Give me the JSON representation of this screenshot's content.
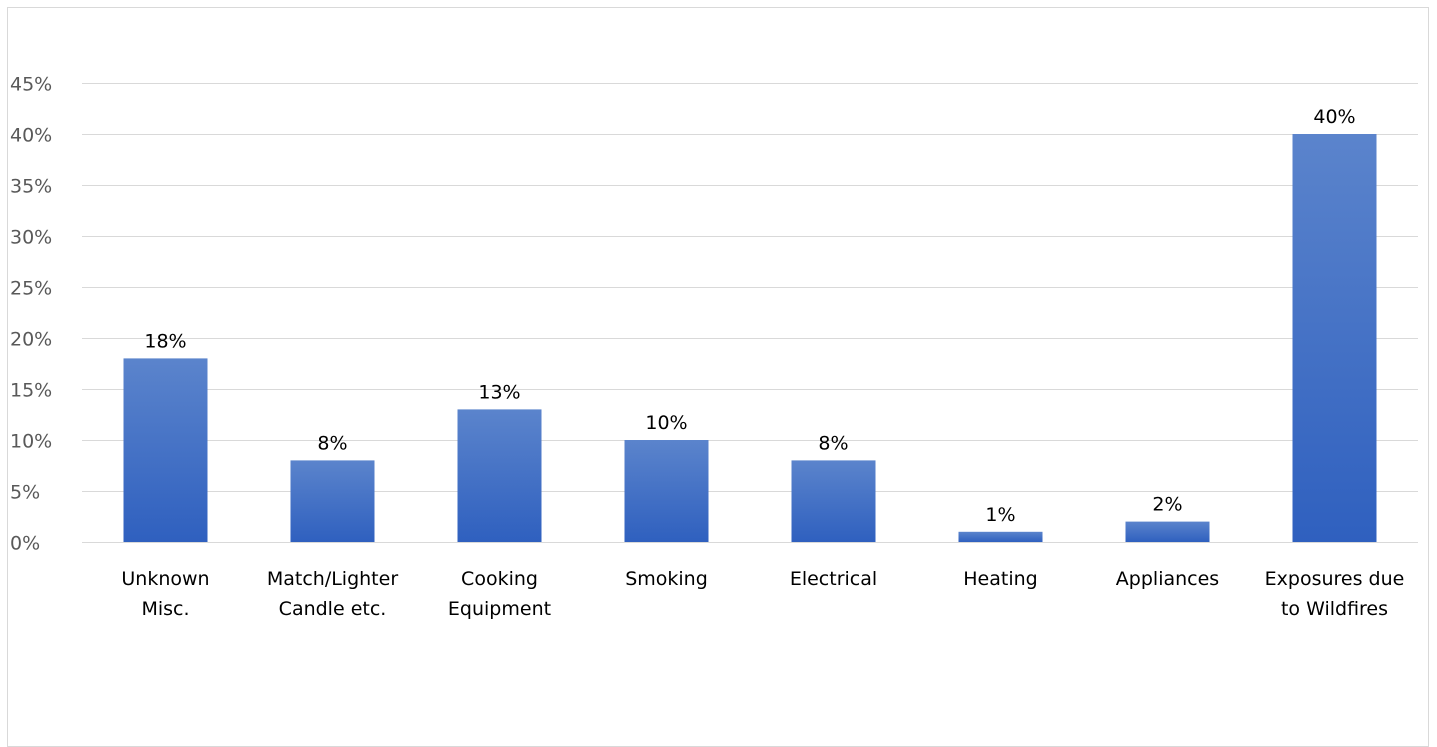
{
  "chart_data": {
    "type": "bar",
    "categories": [
      [
        "Unknown",
        "Misc."
      ],
      [
        "Match/Lighter",
        "Candle etc."
      ],
      [
        "Cooking",
        "Equipment"
      ],
      [
        "Smoking"
      ],
      [
        "Electrical"
      ],
      [
        "Heating"
      ],
      [
        "Appliances"
      ],
      [
        "Exposures due",
        "to Wildfires"
      ]
    ],
    "values": [
      18,
      8,
      13,
      10,
      8,
      1,
      2,
      40
    ],
    "data_labels": [
      "18%",
      "8%",
      "13%",
      "10%",
      "8%",
      "1%",
      "2%",
      "40%"
    ],
    "y_ticks": [
      0,
      5,
      10,
      15,
      20,
      25,
      30,
      35,
      40,
      45
    ],
    "y_tick_labels": [
      "0%",
      "5%",
      "10%",
      "15%",
      "20%",
      "25%",
      "30%",
      "35%",
      "40%",
      "45%"
    ],
    "ylim": [
      0,
      45
    ],
    "grid": true,
    "legend": "none",
    "colors": {
      "bar_top": "#5b84cc",
      "bar_bottom": "#2f60bf",
      "grid": "#d9d9d9",
      "tick_text": "#595959",
      "label_text": "#000000"
    }
  }
}
